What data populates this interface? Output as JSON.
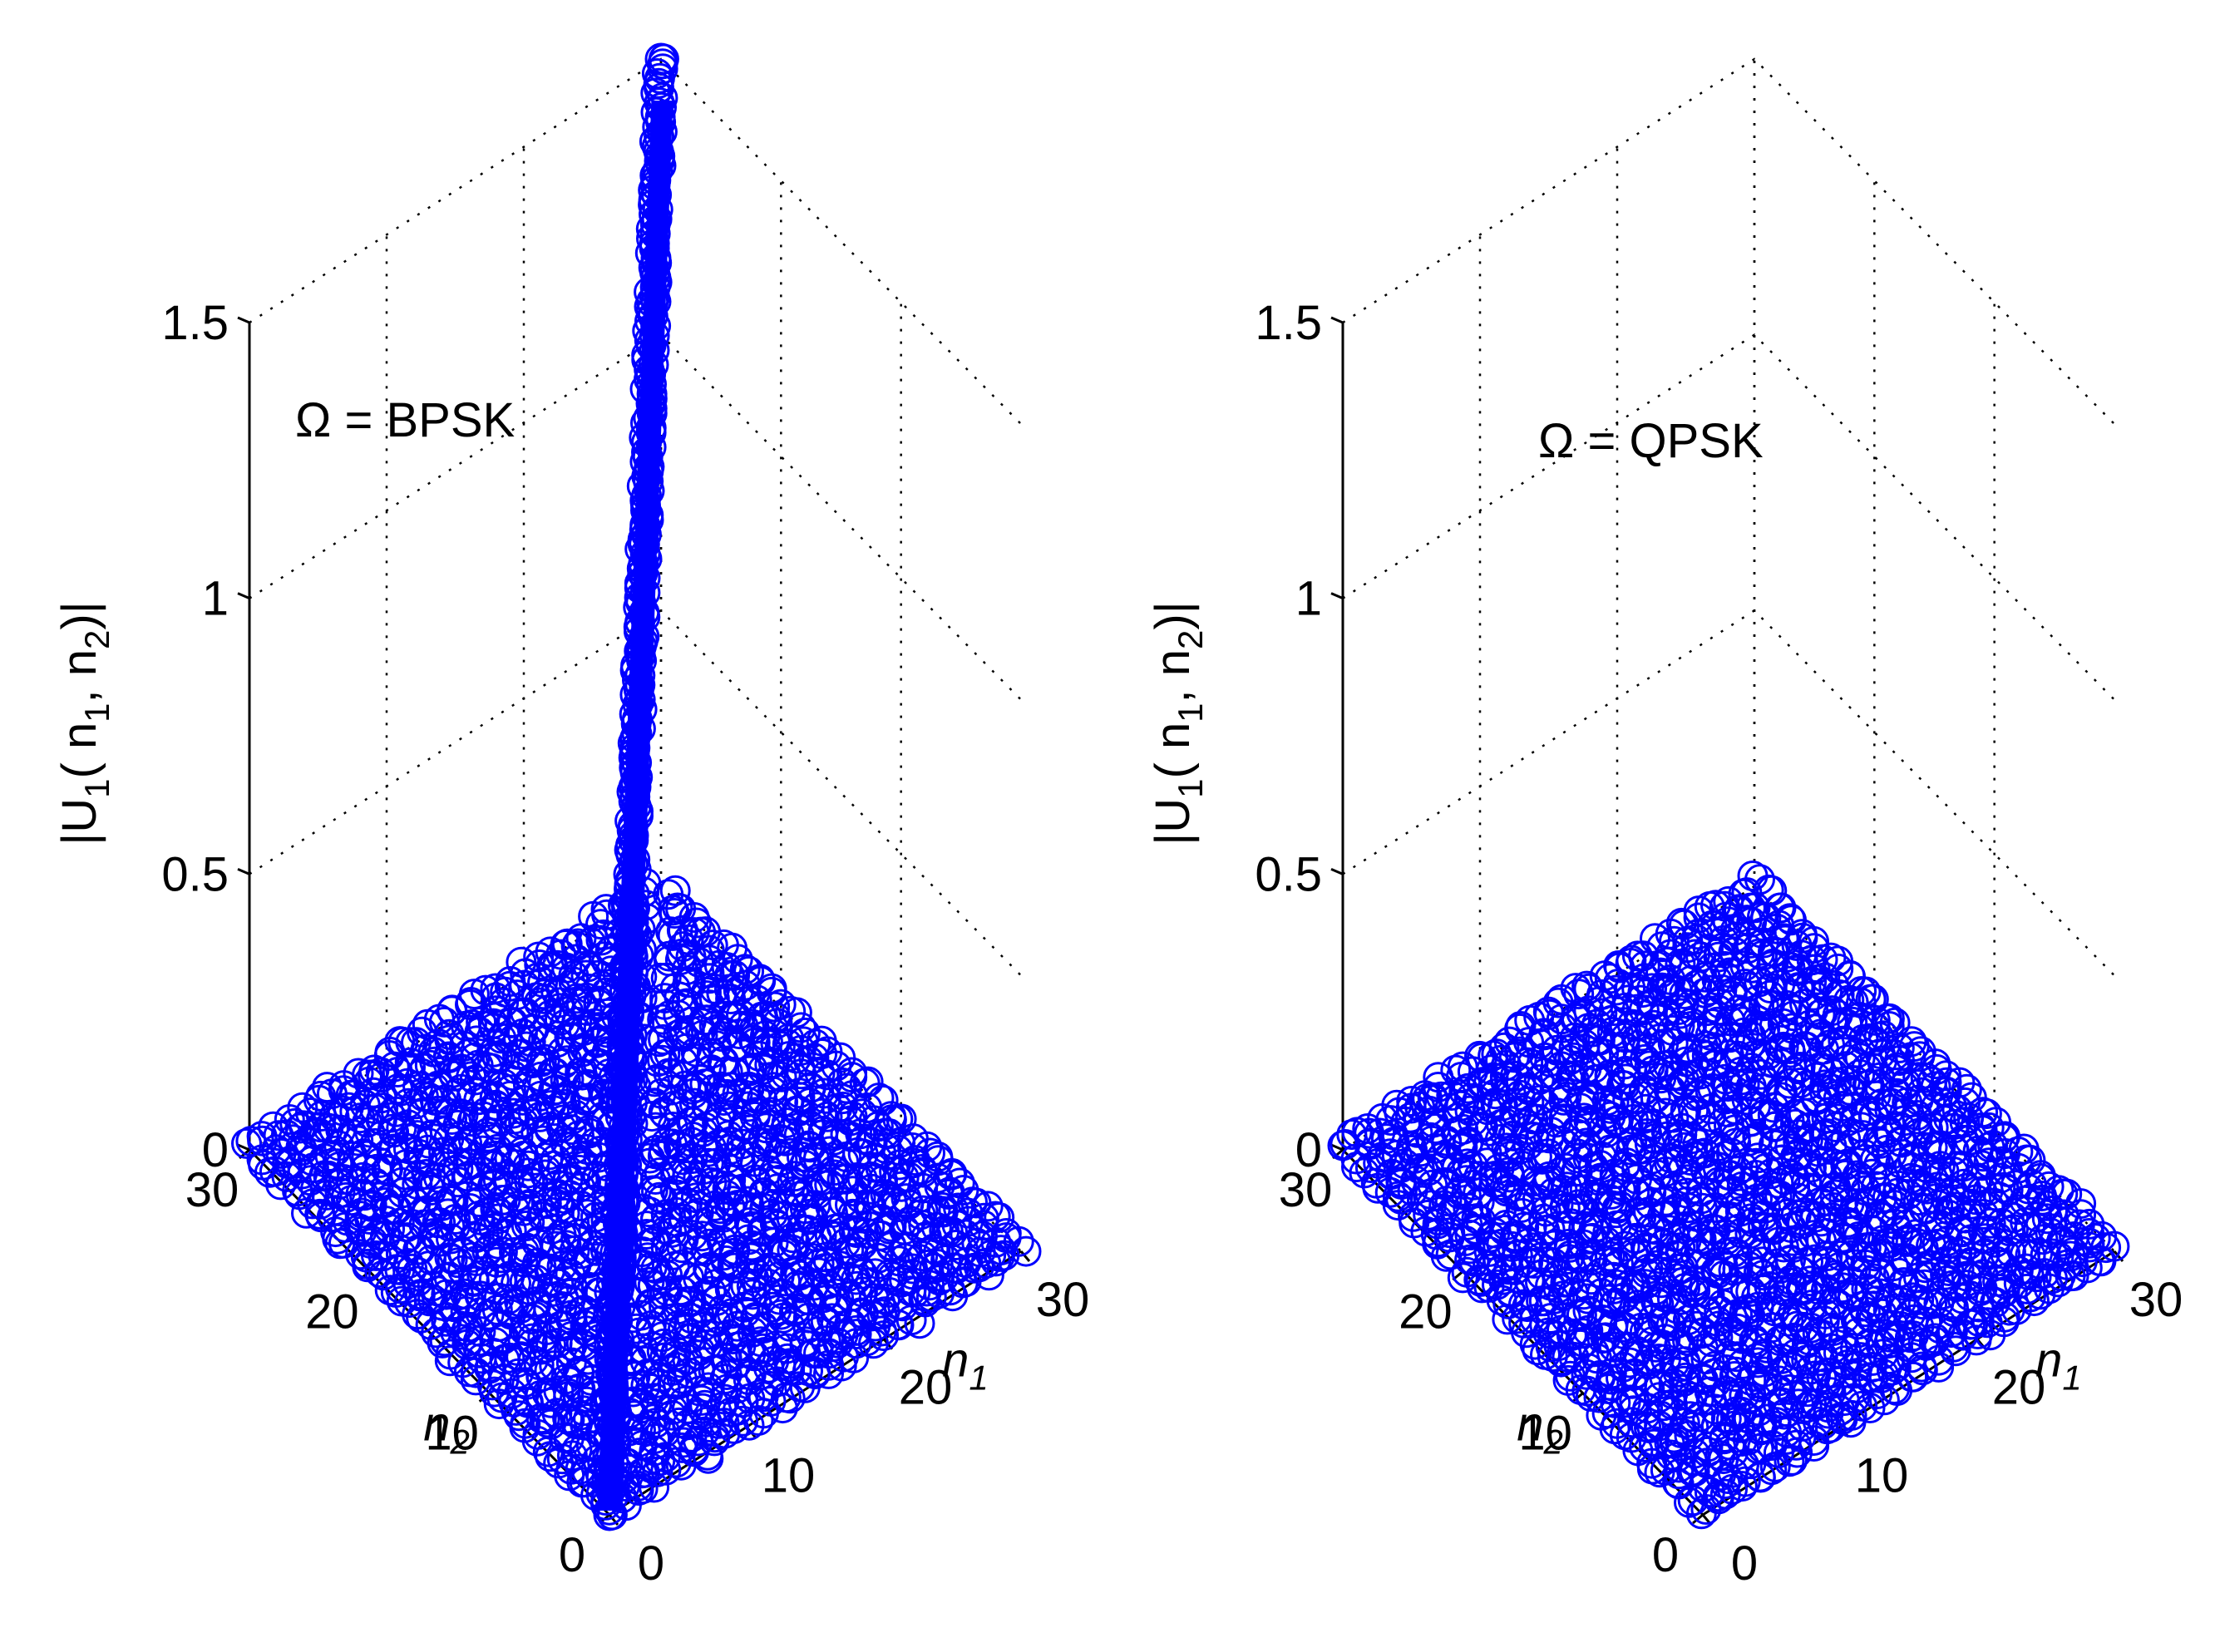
{
  "chart_data": [
    {
      "type": "scatter3d",
      "title": "",
      "annotation": "Ω = BPSK",
      "xlabel": "n1",
      "ylabel": "n2",
      "zlabel": "|U1( n1, n2)|",
      "xlim": [
        0,
        30
      ],
      "ylim": [
        0,
        30
      ],
      "zlim": [
        0,
        1.5
      ],
      "xticks": [
        "0",
        "10",
        "20",
        "30"
      ],
      "yticks": [
        "0",
        "10",
        "20",
        "30"
      ],
      "zticks": [
        "0",
        "0.5",
        "1",
        "1.5"
      ],
      "grid": true,
      "marker": "circle",
      "color": "#0000ff",
      "description_of_series": {
        "diagonal": "points with n1 = n2 have magnitude equal to n1 / 20 (rising from 0 to 1.5)",
        "off_diagonal": "all other points have magnitude near 0 (approx. 0 to 0.03)"
      },
      "diagonal_points": [
        {
          "n1": 0,
          "n2": 0,
          "z": 0.0
        },
        {
          "n1": 5,
          "n2": 5,
          "z": 0.25
        },
        {
          "n1": 10,
          "n2": 10,
          "z": 0.5
        },
        {
          "n1": 15,
          "n2": 15,
          "z": 0.75
        },
        {
          "n1": 20,
          "n2": 20,
          "z": 1.0
        },
        {
          "n1": 25,
          "n2": 25,
          "z": 1.25
        },
        {
          "n1": 30,
          "n2": 30,
          "z": 1.5
        }
      ],
      "off_diagonal_level": 0.01
    },
    {
      "type": "scatter3d",
      "title": "",
      "annotation": "Ω = QPSK",
      "xlabel": "n1",
      "ylabel": "n2",
      "zlabel": "|U1( n1, n2)|",
      "xlim": [
        0,
        30
      ],
      "ylim": [
        0,
        30
      ],
      "zlim": [
        0,
        1.5
      ],
      "xticks": [
        "0",
        "10",
        "20",
        "30"
      ],
      "yticks": [
        "0",
        "10",
        "20",
        "30"
      ],
      "zticks": [
        "0",
        "0.5",
        "1",
        "1.5"
      ],
      "grid": true,
      "marker": "circle",
      "color": "#0000ff",
      "description_of_series": {
        "all_points": "all points (including diagonal) have magnitude near 0 (approx. 0 to 0.03)"
      },
      "off_diagonal_level": 0.01
    }
  ],
  "labels": {
    "n_base": "n",
    "sub_1": "1",
    "sub_2": "2",
    "z_prefix": "|U",
    "z_open": "( n",
    "z_comma": ", n",
    "z_close": ")|"
  }
}
